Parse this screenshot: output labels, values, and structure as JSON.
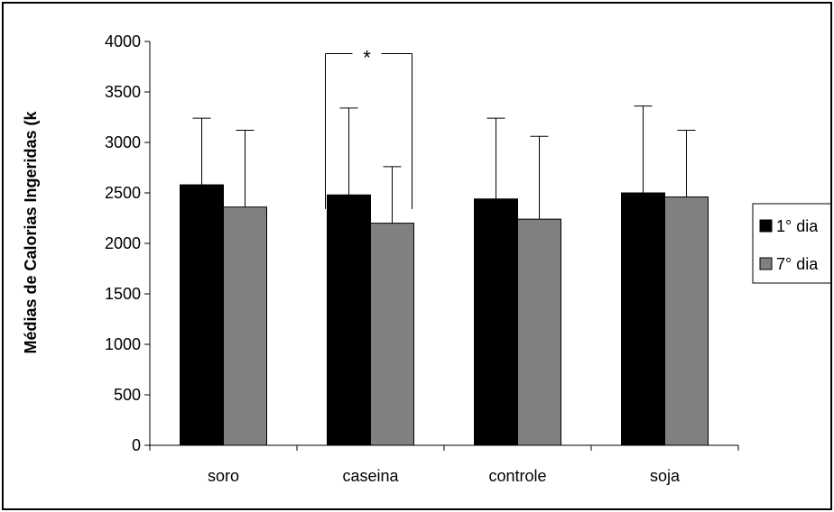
{
  "chart_data": {
    "type": "bar",
    "title": "",
    "xlabel": "",
    "ylabel": "Médias de Calorias Ingeridas (k",
    "ylim": [
      0,
      4000
    ],
    "yticks": [
      0,
      500,
      1000,
      1500,
      2000,
      2500,
      3000,
      3500,
      4000
    ],
    "categories": [
      "soro",
      "caseina",
      "controle",
      "soja"
    ],
    "series": [
      {
        "name": "1° dia",
        "color": "#000000",
        "values": [
          2580,
          2480,
          2440,
          2500
        ],
        "error_upper": [
          3240,
          3340,
          3240,
          3360
        ]
      },
      {
        "name": "7° dia",
        "color": "#808080",
        "values": [
          2360,
          2200,
          2240,
          2460
        ],
        "error_upper": [
          3120,
          2760,
          3060,
          3120
        ]
      }
    ],
    "grid": false,
    "legend_position": "right",
    "annotations": [
      {
        "text": "*",
        "category": "caseina",
        "bracket_top": 3880,
        "bracket_bottom": 2340
      }
    ]
  }
}
